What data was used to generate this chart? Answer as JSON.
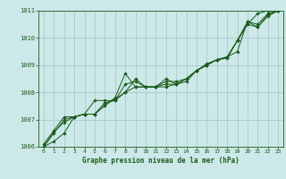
{
  "title": "Graphe pression niveau de la mer (hPa)",
  "xlabel": "Graphe pression niveau de la mer (hPa)",
  "bg_color": "#cce8e8",
  "grid_color": "#aacccc",
  "line_color": "#1a5c1a",
  "marker_color": "#1a5c1a",
  "xlim": [
    -0.5,
    23.5
  ],
  "ylim": [
    1006,
    1011
  ],
  "xticks": [
    0,
    1,
    2,
    3,
    4,
    5,
    6,
    7,
    8,
    9,
    10,
    11,
    12,
    13,
    14,
    15,
    16,
    17,
    18,
    19,
    20,
    21,
    22,
    23
  ],
  "yticks": [
    1006,
    1007,
    1008,
    1009,
    1010,
    1011
  ],
  "series": [
    [
      1006.0,
      1006.2,
      1006.5,
      1007.1,
      1007.2,
      1007.2,
      1007.6,
      1007.7,
      1008.0,
      1008.5,
      1008.2,
      1008.2,
      1008.2,
      1008.3,
      1008.5,
      1008.8,
      1009.0,
      1009.2,
      1009.3,
      1009.9,
      1010.5,
      1010.9,
      1011.0,
      1011.0
    ],
    [
      1006.1,
      1006.6,
      1007.1,
      1007.1,
      1007.2,
      1007.7,
      1007.7,
      1007.7,
      1008.3,
      1008.4,
      1008.2,
      1008.2,
      1008.5,
      1008.3,
      1008.5,
      1008.8,
      1009.0,
      1009.2,
      1009.3,
      1009.5,
      1010.6,
      1010.4,
      1010.8,
      1011.0
    ],
    [
      1006.0,
      1006.5,
      1007.0,
      1007.1,
      1007.2,
      1007.2,
      1007.5,
      1007.8,
      1008.7,
      1008.2,
      1008.2,
      1008.2,
      1008.4,
      1008.4,
      1008.5,
      1008.8,
      1009.05,
      1009.2,
      1009.25,
      1009.9,
      1010.6,
      1010.5,
      1010.9,
      1011.0
    ],
    [
      1006.0,
      1006.55,
      1006.9,
      1007.1,
      1007.2,
      1007.2,
      1007.6,
      1007.75,
      1008.0,
      1008.2,
      1008.2,
      1008.2,
      1008.3,
      1008.3,
      1008.4,
      1008.8,
      1009.0,
      1009.2,
      1009.3,
      1009.9,
      1010.5,
      1010.4,
      1010.85,
      1011.0
    ]
  ]
}
